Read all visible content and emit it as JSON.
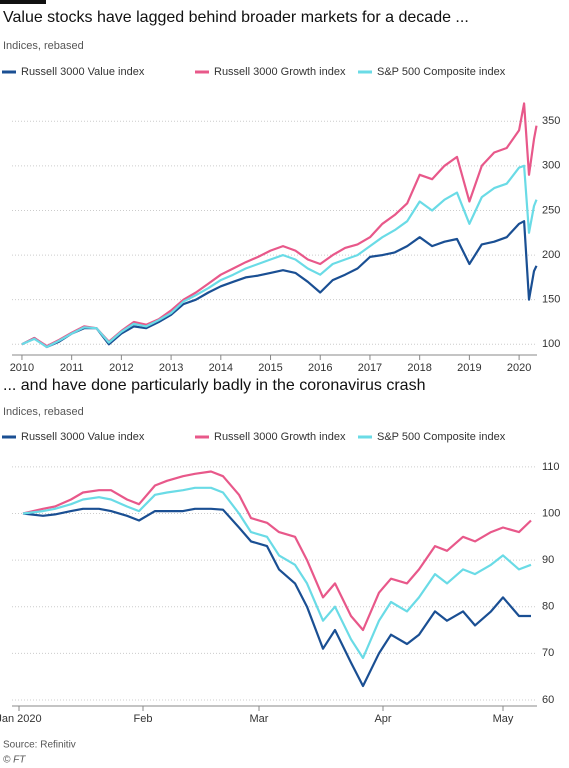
{
  "chart_data": [
    {
      "type": "line",
      "title": "Value stocks have lagged behind broader markets for a decade ...",
      "subtitle": "Indices, rebased",
      "x": [
        2010,
        2010.25,
        2010.5,
        2010.75,
        2011,
        2011.25,
        2011.5,
        2011.75,
        2012,
        2012.25,
        2012.5,
        2012.75,
        2013,
        2013.25,
        2013.5,
        2013.75,
        2014,
        2014.25,
        2014.5,
        2014.75,
        2015,
        2015.25,
        2015.5,
        2015.75,
        2016,
        2016.25,
        2016.5,
        2016.75,
        2017,
        2017.25,
        2017.5,
        2017.75,
        2018,
        2018.25,
        2018.5,
        2018.75,
        2019,
        2019.25,
        2019.5,
        2019.75,
        2020,
        2020.1,
        2020.2,
        2020.3,
        2020.35
      ],
      "series": [
        {
          "name": "Russell 3000 Value index",
          "color": "#1a4f93",
          "values": [
            100,
            107,
            97,
            103,
            112,
            118,
            118,
            100,
            112,
            120,
            118,
            125,
            133,
            145,
            150,
            158,
            165,
            170,
            175,
            177,
            180,
            183,
            180,
            170,
            158,
            172,
            178,
            185,
            198,
            200,
            203,
            210,
            220,
            210,
            215,
            218,
            190,
            212,
            215,
            220,
            235,
            238,
            150,
            182,
            188
          ]
        },
        {
          "name": "Russell 3000 Growth index",
          "color": "#e8588a",
          "values": [
            100,
            107,
            98,
            105,
            113,
            120,
            118,
            103,
            115,
            125,
            122,
            128,
            138,
            150,
            158,
            168,
            178,
            185,
            192,
            198,
            205,
            210,
            205,
            195,
            190,
            200,
            208,
            212,
            220,
            235,
            245,
            258,
            290,
            285,
            300,
            310,
            260,
            300,
            315,
            320,
            340,
            370,
            290,
            330,
            345
          ]
        },
        {
          "name": "S&P 500 Composite index",
          "color": "#6adbe6",
          "values": [
            100,
            106,
            97,
            104,
            112,
            119,
            118,
            102,
            114,
            123,
            120,
            127,
            135,
            148,
            155,
            163,
            172,
            178,
            185,
            190,
            195,
            200,
            195,
            185,
            178,
            190,
            195,
            200,
            210,
            220,
            228,
            238,
            260,
            250,
            262,
            270,
            235,
            265,
            275,
            280,
            298,
            300,
            225,
            255,
            262
          ]
        }
      ],
      "xlim": [
        2009.8,
        2020.36
      ],
      "xticks": [
        2010,
        2011,
        2012,
        2013,
        2014,
        2015,
        2016,
        2017,
        2018,
        2019,
        2020
      ],
      "ylim": [
        88,
        385
      ],
      "yticks": [
        100,
        150,
        200,
        250,
        300,
        350
      ],
      "grid": true
    },
    {
      "type": "line",
      "title": "... and have done particularly badly in the coronavirus crash",
      "subtitle": "Indices, rebased",
      "x": [
        2,
        7,
        10,
        14,
        17,
        21,
        24,
        28,
        31,
        35,
        38,
        42,
        45,
        49,
        52,
        56,
        59,
        63,
        66,
        70,
        73,
        77,
        80,
        84,
        87,
        91,
        94,
        98,
        101,
        105,
        108,
        112,
        115,
        119,
        122,
        126,
        129
      ],
      "series": [
        {
          "name": "Russell 3000 Value index",
          "color": "#1a4f93",
          "values": [
            100,
            99.5,
            99.8,
            100.5,
            101,
            101,
            100.5,
            99.5,
            98.5,
            100.5,
            100.5,
            100.5,
            101,
            101,
            100.8,
            97,
            94,
            93,
            88,
            85,
            80,
            71,
            75,
            68,
            63,
            70,
            74,
            72,
            74,
            79,
            77,
            79,
            76,
            79,
            82,
            78,
            78
          ]
        },
        {
          "name": "Russell 3000 Growth index",
          "color": "#e8588a",
          "values": [
            100,
            101,
            101.5,
            103,
            104.5,
            105,
            105,
            103,
            102,
            106,
            107,
            108,
            108.5,
            109,
            108,
            104,
            99,
            98,
            96,
            95,
            90,
            82,
            85,
            78,
            75,
            83,
            86,
            85,
            88,
            93,
            92,
            95,
            94,
            96,
            97,
            96,
            98.5
          ]
        },
        {
          "name": "S&P 500 Composite index",
          "color": "#6adbe6",
          "values": [
            100,
            100.5,
            101,
            102,
            103,
            103.5,
            103,
            101.5,
            100.5,
            104,
            104.5,
            105,
            105.5,
            105.5,
            104.5,
            100,
            96,
            95,
            91,
            89,
            85,
            77,
            80,
            73,
            69,
            77,
            81,
            79,
            82,
            87,
            85,
            88,
            87,
            89,
            91,
            88,
            89
          ]
        }
      ],
      "xlim": [
        -0.75,
        130.5
      ],
      "xticks": [
        {
          "value": 1,
          "label": "Jan 2020"
        },
        {
          "value": 32,
          "label": "Feb"
        },
        {
          "value": 61,
          "label": "Mar"
        },
        {
          "value": 92,
          "label": "Apr"
        },
        {
          "value": 122,
          "label": "May"
        }
      ],
      "ylim": [
        58.7,
        111.9
      ],
      "yticks": [
        60,
        70,
        80,
        90,
        100,
        110
      ],
      "grid": true
    }
  ],
  "source": "Source: Refinitiv",
  "credit": "© FT"
}
